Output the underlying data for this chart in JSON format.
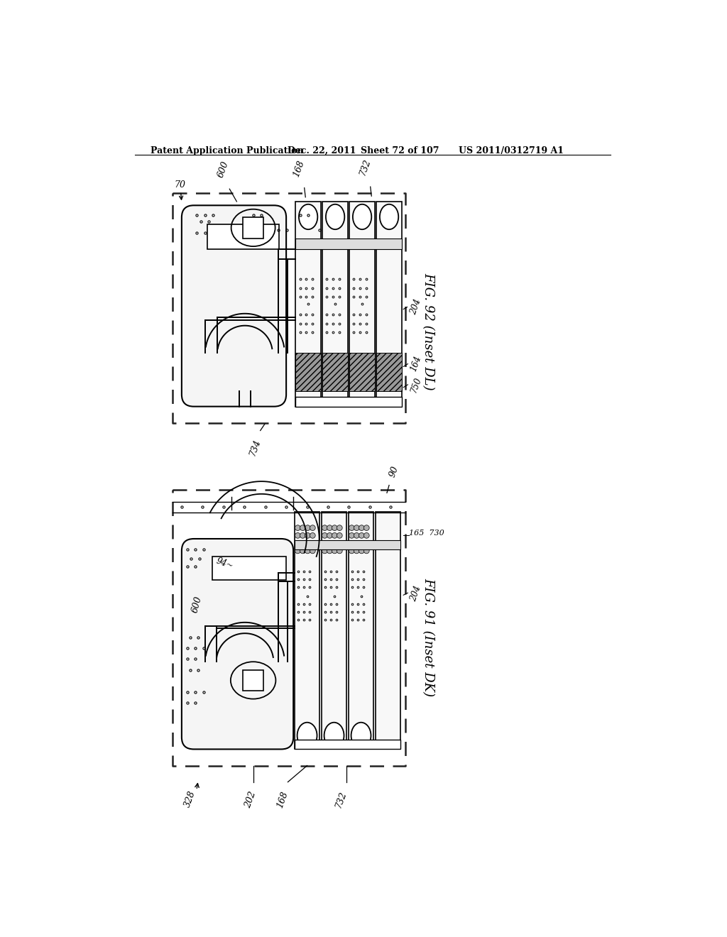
{
  "bg_color": "#ffffff",
  "line_color": "#000000",
  "header_text": "Patent Application Publication",
  "header_date": "Dec. 22, 2011",
  "header_sheet": "Sheet 72 of 107",
  "header_patent": "US 2011/0312719 A1",
  "fig1_label": "FIG. 92 (Inset DL)",
  "fig2_label": "FIG. 91 (Inset DK)"
}
